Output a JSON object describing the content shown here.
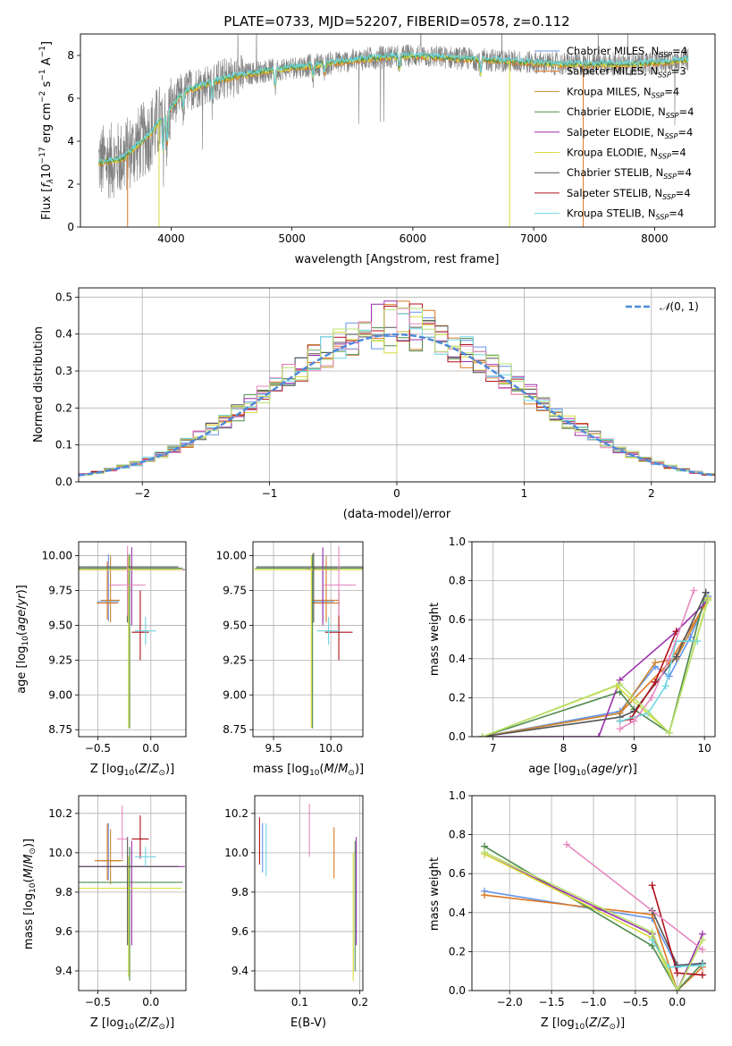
{
  "colors": {
    "chabrier_miles": "#6495ed",
    "salpeter_miles": "#dd7722",
    "kroupa_miles": "#cc8833",
    "chabrier_elodie": "#4e8a4e",
    "salpeter_elodie": "#9b30ab",
    "kroupa_elodie": "#d6dd3a",
    "chabrier_stelib": "#555555",
    "salpeter_stelib": "#b0101a",
    "kroupa_stelib": "#6fd6e0",
    "pink": "#e68ac0",
    "lime": "#b8e070",
    "gray_spectrum": "#808080",
    "normal_curve": "#4f8ad8"
  },
  "chart_data": [
    {
      "id": "spectrum",
      "type": "line",
      "title": "PLATE=0733, MJD=52207, FIBERID=0578, z=0.112",
      "xlabel": "wavelength [Angstrom, rest frame]",
      "ylabel": "Flux [f_λ10^-17 erg cm^-2 s^-1 A^-1]",
      "xlim": [
        3250,
        8500
      ],
      "ylim": [
        0,
        9.0
      ],
      "xticks": [
        "4000",
        "5000",
        "6000",
        "7000",
        "8000"
      ],
      "yticks": [
        "0",
        "2",
        "4",
        "6",
        "8"
      ],
      "grid": false,
      "legend_position": "top-right",
      "legend": [
        {
          "name": "Chabrier MILES, N_SSP=4",
          "color": "chabrier_miles"
        },
        {
          "name": "Salpeter MILES, N_SSP=3",
          "color": "salpeter_miles"
        },
        {
          "name": "Kroupa MILES, N_SSP=4",
          "color": "kroupa_miles"
        },
        {
          "name": "Chabrier ELODIE, N_SSP=4",
          "color": "chabrier_elodie"
        },
        {
          "name": "Salpeter ELODIE, N_SSP=4",
          "color": "salpeter_elodie"
        },
        {
          "name": "Kroupa ELODIE, N_SSP=4",
          "color": "kroupa_elodie"
        },
        {
          "name": "Chabrier STELIB, N_SSP=4",
          "color": "chabrier_stelib"
        },
        {
          "name": "Salpeter STELIB, N_SSP=4",
          "color": "salpeter_stelib"
        },
        {
          "name": "Kroupa STELIB, N_SSP=4",
          "color": "kroupa_stelib"
        }
      ],
      "continuum": {
        "x": [
          3400,
          3600,
          3800,
          3950,
          4100,
          4300,
          4500,
          4800,
          5100,
          5400,
          5700,
          6000,
          6300,
          6600,
          6900,
          7200,
          7500,
          7800,
          8100,
          8250
        ],
        "y": [
          3.0,
          3.2,
          4.2,
          5.2,
          6.3,
          6.7,
          7.0,
          7.3,
          7.5,
          7.7,
          7.9,
          8.0,
          7.9,
          7.8,
          7.7,
          7.6,
          7.6,
          7.6,
          7.7,
          7.8
        ]
      },
      "model_range": [
        3400,
        8280
      ]
    },
    {
      "id": "residuals",
      "type": "line",
      "xlabel": "(data-model)/error",
      "ylabel": "Normed distribution",
      "xlim": [
        -2.5,
        2.5
      ],
      "ylim": [
        0,
        0.525
      ],
      "xticks": [
        "−2",
        "−1",
        "0",
        "1",
        "2"
      ],
      "yticks": [
        "0.0",
        "0.1",
        "0.2",
        "0.3",
        "0.4",
        "0.5"
      ],
      "grid": true,
      "legend_position": "top-right",
      "legend": [
        {
          "name": "N(0,1)",
          "color": "normal_curve",
          "style": "dashed"
        }
      ],
      "bins": {
        "start": -2.5,
        "width": 0.1,
        "count": 50
      }
    },
    {
      "id": "age_vs_Z",
      "type": "scatter",
      "xlabel": "Z [log10(Z/Z⊙)]",
      "ylabel": "age  [log10(age/yr)]",
      "xlim": [
        -0.68,
        0.33
      ],
      "ylim": [
        8.7,
        10.1
      ],
      "xticks": [
        "−0.5",
        "0.0"
      ],
      "yticks": [
        "8.75",
        "9.00",
        "9.25",
        "9.50",
        "9.75",
        "10.00"
      ],
      "grid": true,
      "points": [
        {
          "x": -0.4,
          "y": 9.67,
          "xerr": 0.1,
          "yerr": [
            0.14,
            0.34
          ],
          "color": "chabrier_miles"
        },
        {
          "x": -0.41,
          "y": 9.66,
          "xerr": 0.1,
          "yerr": [
            0.12,
            0.3
          ],
          "color": "salpeter_miles"
        },
        {
          "x": -0.38,
          "y": 9.68,
          "xerr": 0.09,
          "yerr": [
            0.16,
            0.32
          ],
          "color": "kroupa_miles"
        },
        {
          "x": -0.2,
          "y": 9.91,
          "xerr": 0.5,
          "yerr": [
            1.15,
            0.1
          ],
          "color": "chabrier_elodie"
        },
        {
          "x": -0.18,
          "y": 9.9,
          "xerr": 0.5,
          "yerr": [
            0.4,
            0.16
          ],
          "color": "salpeter_elodie"
        },
        {
          "x": -0.21,
          "y": 9.9,
          "xerr": 0.51,
          "yerr": [
            1.14,
            0.1
          ],
          "color": "kroupa_elodie"
        },
        {
          "x": -0.22,
          "y": 9.92,
          "xerr": 0.48,
          "yerr": [
            0.4,
            0.1
          ],
          "color": "chabrier_stelib"
        },
        {
          "x": -0.1,
          "y": 9.45,
          "xerr": 0.08,
          "yerr": [
            0.2,
            0.3
          ],
          "color": "salpeter_stelib"
        },
        {
          "x": -0.05,
          "y": 9.46,
          "xerr": 0.1,
          "yerr": [
            0.1,
            0.1
          ],
          "color": "kroupa_stelib"
        },
        {
          "x": -0.22,
          "y": 9.79,
          "xerr": 0.17,
          "yerr": [
            0.22,
            0.28
          ],
          "color": "pink"
        }
      ]
    },
    {
      "id": "age_vs_mass",
      "type": "scatter",
      "xlabel": "mass [log10(M/M⊙)]",
      "ylabel": "",
      "xlim": [
        9.32,
        10.28
      ],
      "ylim": [
        8.7,
        10.1
      ],
      "xticks": [
        "9.5",
        "10.0"
      ],
      "yticks": [
        "8.75",
        "9.00",
        "9.25",
        "9.50",
        "9.75",
        "10.00"
      ],
      "grid": true,
      "points": [
        {
          "x": 9.93,
          "y": 9.67,
          "xerr": 0.1,
          "yerr": [
            0.14,
            0.34
          ],
          "color": "chabrier_miles"
        },
        {
          "x": 9.96,
          "y": 9.66,
          "xerr": 0.12,
          "yerr": [
            0.12,
            0.3
          ],
          "color": "salpeter_miles"
        },
        {
          "x": 9.96,
          "y": 9.68,
          "xerr": 0.11,
          "yerr": [
            0.16,
            0.32
          ],
          "color": "kroupa_miles"
        },
        {
          "x": 9.84,
          "y": 9.91,
          "xerr": 0.5,
          "yerr": [
            1.15,
            0.1
          ],
          "color": "chabrier_elodie"
        },
        {
          "x": 9.93,
          "y": 9.9,
          "xerr": 0.15,
          "yerr": [
            0.4,
            0.16
          ],
          "color": "salpeter_elodie"
        },
        {
          "x": 9.83,
          "y": 9.9,
          "xerr": 0.5,
          "yerr": [
            1.14,
            0.1
          ],
          "color": "kroupa_elodie"
        },
        {
          "x": 9.85,
          "y": 9.92,
          "xerr": 0.5,
          "yerr": [
            0.4,
            0.1
          ],
          "color": "chabrier_stelib"
        },
        {
          "x": 10.07,
          "y": 9.45,
          "xerr": 0.12,
          "yerr": [
            0.2,
            0.3
          ],
          "color": "salpeter_stelib"
        },
        {
          "x": 9.98,
          "y": 9.46,
          "xerr": 0.1,
          "yerr": [
            0.1,
            0.1
          ],
          "color": "kroupa_stelib"
        },
        {
          "x": 10.07,
          "y": 9.79,
          "xerr": 0.15,
          "yerr": [
            0.22,
            0.28
          ],
          "color": "pink"
        }
      ]
    },
    {
      "id": "weight_vs_age",
      "type": "line",
      "xlabel": "age  [log10(age/yr)]",
      "ylabel": "mass weight",
      "xlim": [
        6.7,
        10.15
      ],
      "ylim": [
        0,
        1.0
      ],
      "xticks": [
        "7",
        "8",
        "9",
        "10"
      ],
      "yticks": [
        "0.0",
        "0.2",
        "0.4",
        "0.6",
        "0.8",
        "1.0"
      ],
      "grid": true,
      "series": [
        {
          "color": "chabrier_miles",
          "x": [
            6.85,
            8.8,
            9.3,
            9.5,
            9.8,
            10.05
          ],
          "y": [
            0.0,
            0.13,
            0.36,
            0.31,
            0.51,
            0.72
          ]
        },
        {
          "color": "salpeter_miles",
          "x": [
            6.85,
            8.8,
            9.5,
            10.05
          ],
          "y": [
            0.0,
            0.12,
            0.38,
            0.7
          ]
        },
        {
          "color": "kroupa_miles",
          "x": [
            6.85,
            8.8,
            9.3,
            9.6,
            10.05
          ],
          "y": [
            0.0,
            0.12,
            0.38,
            0.4,
            0.71
          ]
        },
        {
          "color": "chabrier_elodie",
          "x": [
            6.85,
            8.8,
            9.0,
            9.5,
            10.02
          ],
          "y": [
            0.0,
            0.23,
            0.14,
            0.02,
            0.74
          ]
        },
        {
          "color": "salpeter_elodie",
          "x": [
            6.85,
            8.5,
            8.8,
            9.6,
            10.05
          ],
          "y": [
            0.0,
            0.0,
            0.29,
            0.54,
            0.7
          ]
        },
        {
          "color": "kroupa_elodie",
          "x": [
            6.85,
            8.75,
            9.5,
            10.05
          ],
          "y": [
            0.0,
            0.26,
            0.02,
            0.71
          ]
        },
        {
          "color": "chabrier_stelib",
          "x": [
            6.85,
            8.8,
            9.0,
            9.6,
            10.02
          ],
          "y": [
            0.0,
            0.1,
            0.13,
            0.41,
            0.74
          ]
        },
        {
          "color": "salpeter_stelib",
          "x": [
            8.8,
            8.95,
            9.3,
            9.6
          ],
          "y": [
            0.08,
            0.09,
            0.28,
            0.54
          ]
        },
        {
          "color": "kroupa_stelib",
          "x": [
            8.8,
            9.2,
            9.45,
            9.6,
            9.9
          ],
          "y": [
            0.08,
            0.12,
            0.26,
            0.49,
            0.49
          ]
        },
        {
          "color": "pink",
          "x": [
            8.8,
            9.0,
            9.25,
            9.5,
            9.85
          ],
          "y": [
            0.04,
            0.08,
            0.2,
            0.4,
            0.75
          ]
        },
        {
          "color": "lime",
          "x": [
            6.85,
            8.8,
            9.5,
            10.05
          ],
          "y": [
            0.0,
            0.27,
            0.02,
            0.7
          ]
        }
      ]
    },
    {
      "id": "mass_vs_Z",
      "type": "scatter",
      "xlabel": "Z [log10(Z/Z⊙)]",
      "ylabel": "mass [log10(M/M⊙)]",
      "xlim": [
        -0.68,
        0.33
      ],
      "ylim": [
        9.3,
        10.29
      ],
      "xticks": [
        "−0.5",
        "0.0"
      ],
      "yticks": [
        "9.4",
        "9.6",
        "9.8",
        "10.0",
        "10.2"
      ],
      "grid": true,
      "points": [
        {
          "x": -0.4,
          "y": 9.96,
          "xerr": 0.1,
          "yerr": [
            0.1,
            0.19
          ],
          "color": "chabrier_miles"
        },
        {
          "x": -0.41,
          "y": 9.96,
          "xerr": 0.12,
          "yerr": [
            0.1,
            0.19
          ],
          "color": "salpeter_miles"
        },
        {
          "x": -0.38,
          "y": 9.96,
          "xerr": 0.12,
          "yerr": [
            0.12,
            0.16
          ],
          "color": "kroupa_miles"
        },
        {
          "x": -0.2,
          "y": 9.85,
          "xerr": 0.5,
          "yerr": [
            0.5,
            0.18
          ],
          "color": "chabrier_elodie"
        },
        {
          "x": -0.18,
          "y": 9.93,
          "xerr": 0.5,
          "yerr": [
            0.4,
            0.13
          ],
          "color": "salpeter_elodie"
        },
        {
          "x": -0.21,
          "y": 9.82,
          "xerr": 0.5,
          "yerr": [
            0.45,
            0.16
          ],
          "color": "kroupa_elodie"
        },
        {
          "x": -0.22,
          "y": 9.93,
          "xerr": 0.48,
          "yerr": [
            0.4,
            0.15
          ],
          "color": "chabrier_stelib"
        },
        {
          "x": -0.1,
          "y": 10.07,
          "xerr": 0.08,
          "yerr": [
            0.1,
            0.12
          ],
          "color": "salpeter_stelib"
        },
        {
          "x": -0.05,
          "y": 9.98,
          "xerr": 0.1,
          "yerr": [
            0.05,
            0.05
          ],
          "color": "kroupa_stelib"
        },
        {
          "x": -0.27,
          "y": 10.07,
          "xerr": 0.05,
          "yerr": [
            0.1,
            0.17
          ],
          "color": "pink"
        }
      ]
    },
    {
      "id": "mass_vs_ebv",
      "type": "scatter",
      "xlabel": "E(B-V)",
      "ylabel": "",
      "xlim": [
        0.025,
        0.205
      ],
      "ylim": [
        9.3,
        10.29
      ],
      "xticks": [
        "0.1",
        "0.2"
      ],
      "yticks": [
        "9.4",
        "9.6",
        "9.8",
        "10.0",
        "10.2"
      ],
      "grid": true,
      "points": [
        {
          "x": 0.033,
          "y": 10.07,
          "yerr": [
            0.13,
            0.11
          ],
          "color": "salpeter_stelib"
        },
        {
          "x": 0.038,
          "y": 10.03,
          "yerr": [
            0.13,
            0.12
          ],
          "color": "chabrier_miles"
        },
        {
          "x": 0.044,
          "y": 10.02,
          "yerr": [
            0.14,
            0.13
          ],
          "color": "kroupa_stelib"
        },
        {
          "x": 0.116,
          "y": 10.11,
          "yerr": [
            0.13,
            0.14
          ],
          "color": "pink"
        },
        {
          "x": 0.157,
          "y": 10.0,
          "yerr": [
            0.13,
            0.13
          ],
          "color": "salpeter_miles"
        },
        {
          "x": 0.189,
          "y": 9.66,
          "yerr": [
            0.31,
            0.34
          ],
          "color": "kroupa_elodie"
        },
        {
          "x": 0.192,
          "y": 9.7,
          "yerr": [
            0.3,
            0.36
          ],
          "color": "chabrier_elodie"
        },
        {
          "x": 0.194,
          "y": 9.8,
          "yerr": [
            0.27,
            0.28
          ],
          "color": "salpeter_elodie"
        }
      ]
    },
    {
      "id": "weight_vs_Z",
      "type": "line",
      "xlabel": "Z [log10(Z/Z⊙)]",
      "ylabel": "mass weight",
      "xlim": [
        -2.45,
        0.45
      ],
      "ylim": [
        0,
        1.0
      ],
      "xticks": [
        "−2.0",
        "−1.5",
        "−1.0",
        "−0.5",
        "0.0"
      ],
      "yticks": [
        "0.0",
        "0.2",
        "0.4",
        "0.6",
        "0.8",
        "1.0"
      ],
      "grid": true,
      "series": [
        {
          "color": "chabrier_miles",
          "x": [
            -2.3,
            -0.3,
            0.0,
            0.3
          ],
          "y": [
            0.51,
            0.37,
            0.12,
            0.14
          ]
        },
        {
          "color": "salpeter_miles",
          "x": [
            -2.3,
            -0.3,
            0.0,
            0.3
          ],
          "y": [
            0.49,
            0.39,
            0.0,
            0.12
          ]
        },
        {
          "color": "chabrier_elodie",
          "x": [
            -2.3,
            -0.3,
            0.0,
            0.3
          ],
          "y": [
            0.74,
            0.23,
            0.0,
            0.14
          ]
        },
        {
          "color": "salpeter_elodie",
          "x": [
            -2.3,
            -0.3,
            0.0,
            0.3
          ],
          "y": [
            0.7,
            0.29,
            0.0,
            0.29
          ]
        },
        {
          "color": "kroupa_elodie",
          "x": [
            -2.3,
            -0.3,
            0.0,
            0.3
          ],
          "y": [
            0.7,
            0.27,
            0.0,
            0.26
          ]
        },
        {
          "color": "chabrier_stelib",
          "x": [
            -0.3,
            0.0,
            0.3
          ],
          "y": [
            0.41,
            0.13,
            0.14
          ]
        },
        {
          "color": "salpeter_stelib",
          "x": [
            -0.3,
            0.0,
            0.3
          ],
          "y": [
            0.54,
            0.09,
            0.08
          ]
        },
        {
          "color": "kroupa_stelib",
          "x": [
            -0.3,
            -0.1,
            0.3
          ],
          "y": [
            0.26,
            0.12,
            0.13
          ]
        },
        {
          "color": "pink",
          "x": [
            -1.32,
            0.3
          ],
          "y": [
            0.75,
            0.21
          ]
        },
        {
          "color": "lime",
          "x": [
            -2.3,
            -0.3,
            0.0,
            0.3
          ],
          "y": [
            0.71,
            0.3,
            0.0,
            0.26
          ]
        }
      ]
    }
  ]
}
